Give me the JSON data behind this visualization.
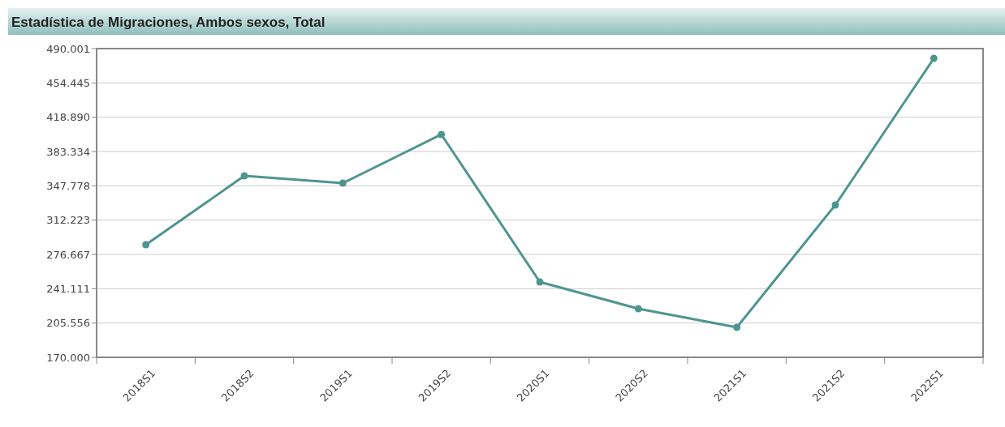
{
  "chart_data": {
    "type": "line",
    "title": "Estadística de Migraciones, Ambos sexos, Total",
    "categories": [
      "2018S1",
      "2018S2",
      "2019S1",
      "2019S2",
      "2020S1",
      "2020S2",
      "2021S1",
      "2021S2",
      "2022S1"
    ],
    "series": [
      {
        "color": "#4e958f",
        "values": [
          286700,
          358100,
          350600,
          401000,
          248100,
          220400,
          201100,
          327900,
          479900
        ]
      }
    ],
    "ylim": [
      170000,
      490001
    ],
    "yticks": [
      {
        "value": 170000,
        "label": "170.000"
      },
      {
        "value": 205556,
        "label": "205.556"
      },
      {
        "value": 241111,
        "label": "241.111"
      },
      {
        "value": 276667,
        "label": "276.667"
      },
      {
        "value": 312223,
        "label": "312.223"
      },
      {
        "value": 347778,
        "label": "347.778"
      },
      {
        "value": 383334,
        "label": "383.334"
      },
      {
        "value": 418890,
        "label": "418.890"
      },
      {
        "value": 454445,
        "label": "454.445"
      },
      {
        "value": 490001,
        "label": "490.001"
      }
    ],
    "grid": "y",
    "marker": "circle",
    "line_style": "solid"
  }
}
